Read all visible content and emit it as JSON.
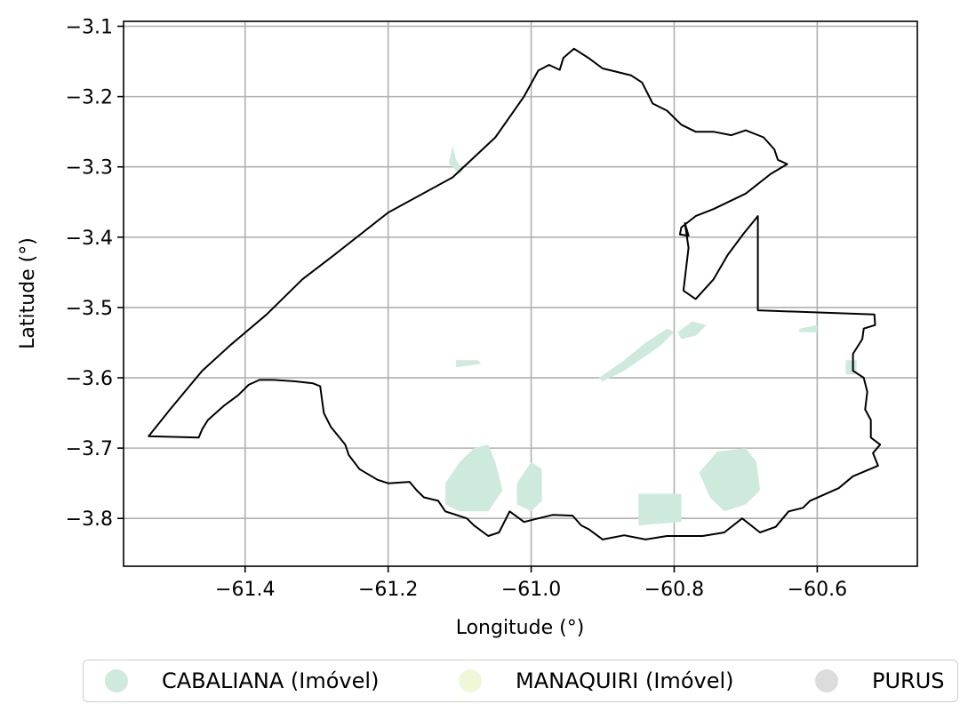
{
  "chart_data": {
    "type": "map",
    "title": "",
    "xlabel": "Longitude (°)",
    "ylabel": "Latitude (°)",
    "xlim": [
      -61.57,
      -60.46
    ],
    "ylim": [
      -3.868,
      -3.093
    ],
    "grid": true,
    "x_ticks": [
      "−61.4",
      "−61.2",
      "−61.0",
      "−60.8",
      "−60.6"
    ],
    "x_tick_values": [
      -61.4,
      -61.2,
      -61.0,
      -60.8,
      -60.6
    ],
    "y_ticks": [
      "−3.1",
      "−3.2",
      "−3.3",
      "−3.4",
      "−3.5",
      "−3.6",
      "−3.7",
      "−3.8"
    ],
    "y_tick_values": [
      -3.1,
      -3.2,
      -3.3,
      -3.4,
      -3.5,
      -3.6,
      -3.7,
      -3.8
    ],
    "legend_placement": "bottom-center",
    "legend": [
      {
        "label": "CABALIANA (Imóvel)",
        "color": "#cdeadc"
      },
      {
        "label": "MANAQUIRI (Imóvel)",
        "color": "#eef8d8"
      },
      {
        "label": "PURUS",
        "color": "#dcdcdc"
      }
    ],
    "boundary_color": "#000000",
    "properties_color": "#cdeadc",
    "boundary": [
      [
        -61.535,
        -3.683
      ],
      [
        -61.505,
        -3.645
      ],
      [
        -61.46,
        -3.59
      ],
      [
        -61.42,
        -3.553
      ],
      [
        -61.37,
        -3.51
      ],
      [
        -61.32,
        -3.46
      ],
      [
        -61.275,
        -3.425
      ],
      [
        -61.2,
        -3.365
      ],
      [
        -61.11,
        -3.315
      ],
      [
        -61.05,
        -3.258
      ],
      [
        -61.01,
        -3.2
      ],
      [
        -60.99,
        -3.163
      ],
      [
        -60.975,
        -3.155
      ],
      [
        -60.96,
        -3.162
      ],
      [
        -60.955,
        -3.145
      ],
      [
        -60.94,
        -3.132
      ],
      [
        -60.92,
        -3.145
      ],
      [
        -60.9,
        -3.16
      ],
      [
        -60.88,
        -3.165
      ],
      [
        -60.86,
        -3.17
      ],
      [
        -60.845,
        -3.18
      ],
      [
        -60.83,
        -3.21
      ],
      [
        -60.81,
        -3.22
      ],
      [
        -60.79,
        -3.24
      ],
      [
        -60.77,
        -3.25
      ],
      [
        -60.745,
        -3.25
      ],
      [
        -60.72,
        -3.255
      ],
      [
        -60.7,
        -3.248
      ],
      [
        -60.675,
        -3.258
      ],
      [
        -60.66,
        -3.275
      ],
      [
        -60.655,
        -3.29
      ],
      [
        -60.642,
        -3.296
      ],
      [
        -60.665,
        -3.31
      ],
      [
        -60.7,
        -3.338
      ],
      [
        -60.745,
        -3.36
      ],
      [
        -60.77,
        -3.37
      ],
      [
        -60.79,
        -3.386
      ],
      [
        -60.792,
        -3.396
      ],
      [
        -60.78,
        -3.398
      ],
      [
        -60.785,
        -3.38
      ],
      [
        -60.78,
        -3.415
      ],
      [
        -60.787,
        -3.476
      ],
      [
        -60.77,
        -3.488
      ],
      [
        -60.745,
        -3.46
      ],
      [
        -60.725,
        -3.425
      ],
      [
        -60.703,
        -3.395
      ],
      [
        -60.683,
        -3.37
      ],
      [
        -60.683,
        -3.504
      ],
      [
        -60.52,
        -3.51
      ],
      [
        -60.519,
        -3.525
      ],
      [
        -60.535,
        -3.53
      ],
      [
        -60.537,
        -3.545
      ],
      [
        -60.55,
        -3.566
      ],
      [
        -60.55,
        -3.59
      ],
      [
        -60.535,
        -3.6
      ],
      [
        -60.53,
        -3.62
      ],
      [
        -60.533,
        -3.645
      ],
      [
        -60.525,
        -3.66
      ],
      [
        -60.525,
        -3.685
      ],
      [
        -60.512,
        -3.695
      ],
      [
        -60.522,
        -3.707
      ],
      [
        -60.515,
        -3.725
      ],
      [
        -60.55,
        -3.74
      ],
      [
        -60.57,
        -3.757
      ],
      [
        -60.61,
        -3.775
      ],
      [
        -60.62,
        -3.785
      ],
      [
        -60.64,
        -3.79
      ],
      [
        -60.658,
        -3.812
      ],
      [
        -60.68,
        -3.82
      ],
      [
        -60.705,
        -3.8
      ],
      [
        -60.73,
        -3.82
      ],
      [
        -60.76,
        -3.825
      ],
      [
        -60.81,
        -3.825
      ],
      [
        -60.84,
        -3.83
      ],
      [
        -60.87,
        -3.824
      ],
      [
        -60.9,
        -3.83
      ],
      [
        -60.92,
        -3.815
      ],
      [
        -60.93,
        -3.81
      ],
      [
        -60.942,
        -3.796
      ],
      [
        -60.97,
        -3.795
      ],
      [
        -60.99,
        -3.8
      ],
      [
        -61.01,
        -3.805
      ],
      [
        -61.03,
        -3.79
      ],
      [
        -61.045,
        -3.82
      ],
      [
        -61.06,
        -3.825
      ],
      [
        -61.08,
        -3.81
      ],
      [
        -61.09,
        -3.8
      ],
      [
        -61.12,
        -3.79
      ],
      [
        -61.13,
        -3.775
      ],
      [
        -61.15,
        -3.77
      ],
      [
        -61.16,
        -3.76
      ],
      [
        -61.17,
        -3.748
      ],
      [
        -61.2,
        -3.75
      ],
      [
        -61.215,
        -3.745
      ],
      [
        -61.24,
        -3.73
      ],
      [
        -61.255,
        -3.71
      ],
      [
        -61.26,
        -3.695
      ],
      [
        -61.28,
        -3.67
      ],
      [
        -61.29,
        -3.65
      ],
      [
        -61.295,
        -3.612
      ],
      [
        -61.305,
        -3.608
      ],
      [
        -61.33,
        -3.605
      ],
      [
        -61.36,
        -3.603
      ],
      [
        -61.38,
        -3.603
      ],
      [
        -61.395,
        -3.61
      ],
      [
        -61.41,
        -3.625
      ],
      [
        -61.43,
        -3.64
      ],
      [
        -61.452,
        -3.66
      ],
      [
        -61.46,
        -3.673
      ],
      [
        -61.465,
        -3.685
      ],
      [
        -61.535,
        -3.683
      ]
    ],
    "properties": [
      [
        [
          -60.765,
          -3.735
        ],
        [
          -60.74,
          -3.705
        ],
        [
          -60.7,
          -3.7
        ],
        [
          -60.685,
          -3.72
        ],
        [
          -60.68,
          -3.76
        ],
        [
          -60.7,
          -3.78
        ],
        [
          -60.73,
          -3.79
        ],
        [
          -60.75,
          -3.77
        ]
      ],
      [
        [
          -60.85,
          -3.765
        ],
        [
          -60.79,
          -3.765
        ],
        [
          -60.79,
          -3.805
        ],
        [
          -60.85,
          -3.81
        ]
      ],
      [
        [
          -61.12,
          -3.75
        ],
        [
          -61.1,
          -3.72
        ],
        [
          -61.08,
          -3.7
        ],
        [
          -61.06,
          -3.695
        ],
        [
          -61.05,
          -3.72
        ],
        [
          -61.04,
          -3.76
        ],
        [
          -61.06,
          -3.79
        ],
        [
          -61.1,
          -3.79
        ],
        [
          -61.12,
          -3.78
        ]
      ],
      [
        [
          -61.02,
          -3.75
        ],
        [
          -61.0,
          -3.72
        ],
        [
          -60.985,
          -3.73
        ],
        [
          -60.985,
          -3.775
        ],
        [
          -61.0,
          -3.79
        ],
        [
          -61.02,
          -3.78
        ]
      ],
      [
        [
          -61.105,
          -3.575
        ],
        [
          -61.075,
          -3.575
        ],
        [
          -61.07,
          -3.58
        ],
        [
          -61.105,
          -3.585
        ]
      ],
      [
        [
          -60.9,
          -3.605
        ],
        [
          -60.87,
          -3.59
        ],
        [
          -60.82,
          -3.555
        ],
        [
          -60.8,
          -3.535
        ],
        [
          -60.81,
          -3.53
        ],
        [
          -60.84,
          -3.55
        ],
        [
          -60.87,
          -3.575
        ],
        [
          -60.905,
          -3.6
        ]
      ],
      [
        [
          -60.79,
          -3.545
        ],
        [
          -60.77,
          -3.54
        ],
        [
          -60.755,
          -3.525
        ],
        [
          -60.775,
          -3.52
        ],
        [
          -60.795,
          -3.535
        ]
      ],
      [
        [
          -60.625,
          -3.53
        ],
        [
          -60.6,
          -3.525
        ],
        [
          -60.6,
          -3.535
        ],
        [
          -60.625,
          -3.535
        ]
      ],
      [
        [
          -60.56,
          -3.575
        ],
        [
          -60.545,
          -3.575
        ],
        [
          -60.545,
          -3.595
        ],
        [
          -60.56,
          -3.595
        ]
      ],
      [
        [
          -61.11,
          -3.27
        ],
        [
          -61.105,
          -3.29
        ],
        [
          -61.095,
          -3.305
        ],
        [
          -61.1,
          -3.31
        ],
        [
          -61.115,
          -3.295
        ]
      ]
    ]
  }
}
